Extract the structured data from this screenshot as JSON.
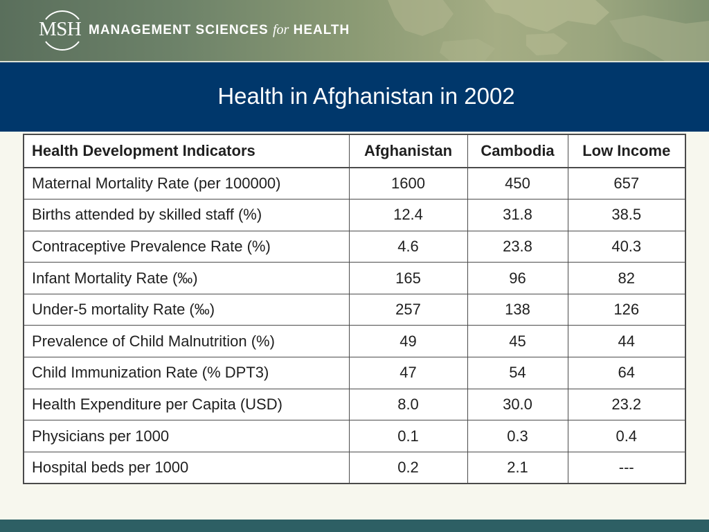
{
  "header": {
    "logo_msh": "MSH",
    "org_name_a": "MANAGEMENT SCIENCES",
    "org_name_for": "for",
    "org_name_b": "HEALTH"
  },
  "slide": {
    "title": "Health in Afghanistan in 2002"
  },
  "table": {
    "columns": [
      "Health Development Indicators",
      "Afghanistan",
      "Cambodia",
      "Low Income"
    ],
    "rows": [
      [
        "Maternal Mortality Rate (per 100000)",
        "1600",
        "450",
        "657"
      ],
      [
        "Births attended by skilled staff (%)",
        "12.4",
        "31.8",
        "38.5"
      ],
      [
        "Contraceptive Prevalence Rate (%)",
        "4.6",
        "23.8",
        "40.3"
      ],
      [
        "Infant Mortality Rate (‰)",
        "165",
        "96",
        "82"
      ],
      [
        "Under-5 mortality Rate (‰)",
        "257",
        "138",
        "126"
      ],
      [
        "Prevalence of Child Malnutrition (%)",
        "49",
        "45",
        "44"
      ],
      [
        "Child Immunization Rate (% DPT3)",
        "47",
        "54",
        "64"
      ],
      [
        "Health Expenditure per Capita (USD)",
        "8.0",
        "30.0",
        "23.2"
      ],
      [
        "Physicians per 1000",
        "0.1",
        "0.3",
        "0.4"
      ],
      [
        "Hospital beds per 1000",
        "0.2",
        "2.1",
        "---"
      ]
    ]
  },
  "colors": {
    "title_bar": "#00376b",
    "footer_bar": "#2d5f64",
    "background": "#f7f7ee"
  }
}
